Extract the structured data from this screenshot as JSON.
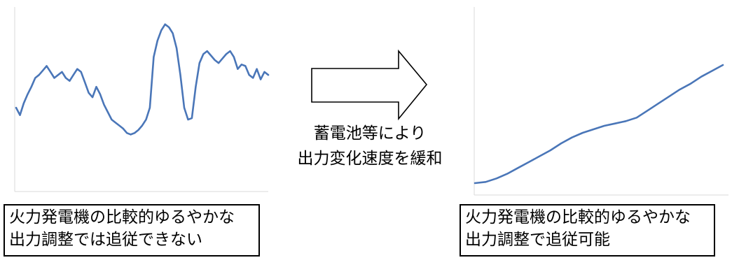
{
  "colors": {
    "line": "#4a76b8",
    "axis": "#d9d9d9",
    "border": "#000000"
  },
  "arrow": {
    "label_lines": [
      "蓄電池等により",
      "出力変化速度を緩和"
    ]
  },
  "left_panel": {
    "caption_lines": [
      "火力発電機の比較的ゆるやかな",
      "出力調整では追従できない"
    ]
  },
  "right_panel": {
    "caption_lines": [
      "火力発電機の比較的ゆるやかな",
      "出力調整で追従可能"
    ]
  },
  "chart_data": [
    {
      "type": "line",
      "title": "",
      "xlabel": "",
      "ylabel": "",
      "ylim": [
        0,
        100
      ],
      "grid": false,
      "series": [
        {
          "values": [
            38,
            33,
            41,
            47,
            52,
            58,
            60,
            63,
            66,
            62,
            58,
            60,
            62,
            58,
            56,
            60,
            64,
            62,
            55,
            48,
            45,
            52,
            47,
            40,
            35,
            30,
            28,
            26,
            24,
            21,
            20,
            21,
            23,
            26,
            30,
            38,
            72,
            83,
            90,
            94,
            92,
            88,
            78,
            60,
            38,
            30,
            31,
            52,
            68,
            74,
            76,
            73,
            70,
            68,
            71,
            74,
            76,
            72,
            64,
            67,
            66,
            60,
            58,
            64,
            57,
            62,
            60
          ]
        }
      ]
    },
    {
      "type": "line",
      "title": "",
      "xlabel": "",
      "ylabel": "",
      "ylim": [
        0,
        100
      ],
      "grid": false,
      "series": [
        {
          "values": [
            5,
            6,
            9,
            13,
            18,
            23,
            28,
            33,
            39,
            44,
            48,
            51,
            54,
            56,
            58,
            61,
            67,
            73,
            79,
            85,
            90,
            96,
            101,
            106
          ]
        }
      ]
    }
  ]
}
